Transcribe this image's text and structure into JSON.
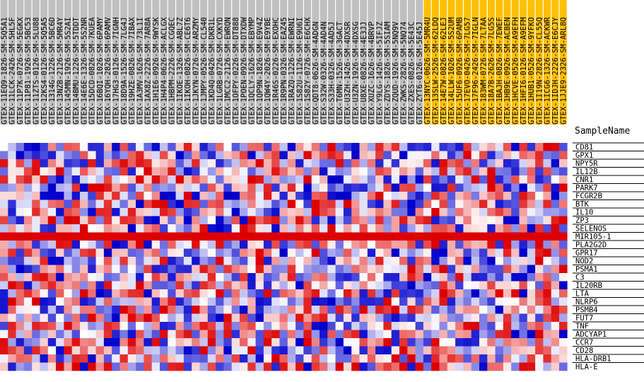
{
  "chart_data": {
    "type": "heatmap",
    "row_label_title": "SampleName",
    "colors": {
      "group_a_header": "#c0c0c0",
      "group_b_header": "#ffc000",
      "low": "#0000cc",
      "mid": "#ffffff",
      "high": "#dd0000"
    },
    "columns": [
      "GTEX-11EQ9-1826-SM-5Q5A1",
      "GTEX-11LCK-2426-SM-5HL5F",
      "GTEX-11P7K-0726-SM-5EGKX",
      "GTEX-11P81-1926-SM-5BC53",
      "GTEX-11ZTS-0126-SM-5LU88",
      "GTEX-12KS4-0126-SM-5Q5A5",
      "GTEX-1314G-1226-SM-5BC6D",
      "GTEX-13NZB-2126-SM-5MR4Y",
      "GTEX-145MN-1926-SM-5S2AI",
      "GTEX-14BMU-1226-SM-5TDDT",
      "GTEX-14E6E-1326-SM-5S2NR",
      "GTEX-15DCD-0826-SM-7KUEA",
      "GTEX-16BQI-1026-SM-6PAMY",
      "GTEX-16YQH-2826-SM-6PAMV",
      "GTEX-17HG3-0126-SM-7IGNH",
      "GTEX-18D9A-1526-SM-7LG4J",
      "GTEX-19HZE-0826-SM-7IBAX",
      "GTEX-1A3MV-1626-SM-73L1I",
      "GTEX-1AX8Z-2226-SM-7AR8A",
      "GTEX-1H1E6-0926-SM-9WYSK",
      "GTEX-1H4P4-0626-SM-ACLGX",
      "GTEX-1HBPM-2226-SM-CGQEC",
      "GTEX-1IKOE-1326-SM-ABL7Z",
      "GTEX-1IKOH-0826-SM-CE6T6",
      "GTEX-1JKYN-0726-SM-ARZMY",
      "GTEX-1JMPY-0526-SM-CL540",
      "GTEX-1KD4Q-0426-SM-DKR1L",
      "GTEX-1LGRB-0726-SM-CXKYD",
      "GTEX-1MCC2-2126-SM-EWRQN",
      "GTEX-1OFPY-0226-SM-DT888",
      "GTEX-1POEN-0926-SM-DTXDW",
      "GTEX-1QCLY-1626-SM-EBYMP",
      "GTEX-1QP9N-1826-SM-E9V4Z",
      "GTEX-1QW4Y-2026-SM-E9YBE",
      "GTEX-1R46S-0226-SM-EXOHC",
      "GTEX-1R9PN-0326-SM-EAZ45",
      "GTEX-1RAZQ-1226-SM-EWRNI",
      "GTEX-1S82U-1126-SM-E9U6I",
      "GTEX-1S82Y-0726-SM-E6CHX",
      "GTEX-QDT8-0626-SM-4ADGN",
      "GTEX-S32W-0326-SM-4AD4N",
      "GTEX-S33H-0326-SM-4AD5J",
      "GTEX-T6MN-1526-SM-3GACT",
      "GTEX-U3ZH-1426-SM-4DXSR",
      "GTEX-U3ZN-1926-SM-4DXSG",
      "GTEX-U8XE-0826-SM-4E3JJ",
      "GTEX-XUZC-1626-SM-4BRVP",
      "GTEX-Y9LG-1426-SM-5IFJZ",
      "GTEX-ZDYS-1826-SM-5SIAM",
      "GTEX-ZQUD-1926-SM-5NQ9V",
      "GTEX-ZWKS-2826-SM-5NQ74",
      "GTEX-ZXES-0826-SM-5E43C",
      "GTEX-ZYT6-0126-SM-5E45J",
      "GTEX-13NYC-0626-SM-5MR4U",
      "GTEX-13SLW-2526-SM-62LDQ",
      "GTEX-14E7W-0826-SM-62LEJ",
      "GTEX-14LLW-1026-SM-5S2UM",
      "GTEX-15UF6-0926-SM-6PAMB",
      "GTEX-17EVO-0426-SM-7LG57",
      "GTEX-17F96-2426-SM-7IGLN",
      "GTEX-183WM-0726-SM-7LTAA",
      "GTEX-18A7B-2626-SM-7LG5S",
      "GTEX-1BAJH-0826-SM-7EWEF",
      "GTEX-1HB9E-0926-SM-ACBEN",
      "GTEX-1HCVE-0526-SM-A9EFH",
      "GTEX-1HFI6-0126-SM-A9EFM",
      "GTEX-1HUB1-0526-SM-9YFKO",
      "GTEX-1I19N-2826-SM-CL55Q",
      "GTEX-1ICG6-1326-SM-ACKWR",
      "GTEX-1IDJH-2226-SM-E6CJY",
      "GTEX-1JJE9-2326-SM-ARL8Q"
    ],
    "group_a_count": 53,
    "rows": [
      "CD81",
      "GPX1",
      "NPY5R",
      "IL12B",
      "CNR1",
      "PARK7",
      "FCGR2B",
      "BTK",
      "IL10",
      "ZP3",
      "SELENOS",
      "MIR105-1",
      "PLA2G2D",
      "GPR17",
      "NOD2",
      "PSMA1",
      "C3",
      "IL20RB",
      "LTA",
      "NLRP6",
      "PSMB4",
      "FUT7",
      "TNF",
      "ADCYAP1",
      "CCR7",
      "CD28",
      "HLA-DRB1",
      "HLA-E"
    ],
    "value_range": [
      -3,
      3
    ],
    "seed": 20240517,
    "constant_rows": {
      "MIR105-1": 3
    }
  }
}
